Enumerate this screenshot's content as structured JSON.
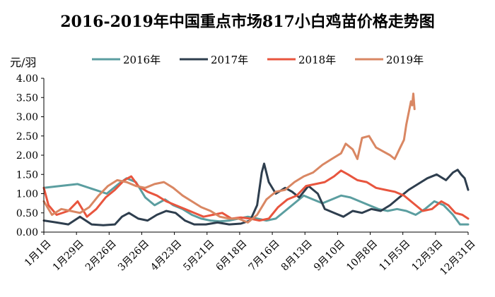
{
  "chart_data": {
    "type": "line",
    "title": "2016-2019年中国重点市场817小白鸡苗价格走势图",
    "ylabel": "元/羽",
    "ylim": [
      0,
      4
    ],
    "yticks": [
      "0.00",
      "0.50",
      "1.00",
      "1.50",
      "2.00",
      "2.50",
      "3.00",
      "3.50",
      "4.00"
    ],
    "xlim": [
      1,
      365
    ],
    "xticks": [
      {
        "label": "1月1日",
        "day": 1
      },
      {
        "label": "1月29日",
        "day": 29
      },
      {
        "label": "2月26日",
        "day": 57
      },
      {
        "label": "3月26日",
        "day": 85
      },
      {
        "label": "4月23日",
        "day": 113
      },
      {
        "label": "5月21日",
        "day": 141
      },
      {
        "label": "6月18日",
        "day": 169
      },
      {
        "label": "7月16日",
        "day": 197
      },
      {
        "label": "8月13日",
        "day": 225
      },
      {
        "label": "9月10日",
        "day": 253
      },
      {
        "label": "10月8日",
        "day": 281
      },
      {
        "label": "11月5日",
        "day": 309
      },
      {
        "label": "12月3日",
        "day": 337
      },
      {
        "label": "12月31日",
        "day": 365
      }
    ],
    "grid": false,
    "legend_position": "top",
    "series": [
      {
        "name": "2016年",
        "color": "#5b9ea0",
        "points": [
          [
            1,
            1.15
          ],
          [
            15,
            1.2
          ],
          [
            30,
            1.25
          ],
          [
            45,
            1.1
          ],
          [
            55,
            1.0
          ],
          [
            65,
            1.25
          ],
          [
            72,
            1.4
          ],
          [
            80,
            1.3
          ],
          [
            88,
            0.9
          ],
          [
            96,
            0.7
          ],
          [
            105,
            0.85
          ],
          [
            112,
            0.7
          ],
          [
            120,
            0.6
          ],
          [
            128,
            0.45
          ],
          [
            136,
            0.35
          ],
          [
            144,
            0.3
          ],
          [
            152,
            0.28
          ],
          [
            160,
            0.3
          ],
          [
            168,
            0.35
          ],
          [
            176,
            0.4
          ],
          [
            184,
            0.35
          ],
          [
            192,
            0.3
          ],
          [
            200,
            0.35
          ],
          [
            208,
            0.55
          ],
          [
            216,
            0.75
          ],
          [
            224,
            0.95
          ],
          [
            232,
            0.85
          ],
          [
            240,
            0.75
          ],
          [
            248,
            0.85
          ],
          [
            256,
            0.95
          ],
          [
            264,
            0.9
          ],
          [
            272,
            0.8
          ],
          [
            280,
            0.7
          ],
          [
            288,
            0.6
          ],
          [
            296,
            0.55
          ],
          [
            304,
            0.6
          ],
          [
            312,
            0.55
          ],
          [
            320,
            0.45
          ],
          [
            328,
            0.6
          ],
          [
            336,
            0.8
          ],
          [
            344,
            0.7
          ],
          [
            352,
            0.45
          ],
          [
            358,
            0.2
          ],
          [
            365,
            0.2
          ]
        ]
      },
      {
        "name": "2017年",
        "color": "#2e3e4e",
        "points": [
          [
            1,
            0.3
          ],
          [
            12,
            0.25
          ],
          [
            22,
            0.2
          ],
          [
            32,
            0.4
          ],
          [
            42,
            0.2
          ],
          [
            52,
            0.18
          ],
          [
            62,
            0.2
          ],
          [
            68,
            0.4
          ],
          [
            74,
            0.5
          ],
          [
            82,
            0.35
          ],
          [
            90,
            0.3
          ],
          [
            98,
            0.45
          ],
          [
            106,
            0.55
          ],
          [
            114,
            0.5
          ],
          [
            122,
            0.3
          ],
          [
            130,
            0.2
          ],
          [
            140,
            0.2
          ],
          [
            150,
            0.25
          ],
          [
            160,
            0.2
          ],
          [
            170,
            0.22
          ],
          [
            178,
            0.3
          ],
          [
            184,
            0.7
          ],
          [
            188,
            1.55
          ],
          [
            190,
            1.78
          ],
          [
            194,
            1.3
          ],
          [
            200,
            1.0
          ],
          [
            208,
            1.15
          ],
          [
            214,
            1.05
          ],
          [
            220,
            0.9
          ],
          [
            228,
            1.2
          ],
          [
            236,
            1.0
          ],
          [
            242,
            0.6
          ],
          [
            250,
            0.5
          ],
          [
            258,
            0.4
          ],
          [
            266,
            0.55
          ],
          [
            274,
            0.5
          ],
          [
            282,
            0.6
          ],
          [
            290,
            0.55
          ],
          [
            298,
            0.7
          ],
          [
            306,
            0.9
          ],
          [
            314,
            1.1
          ],
          [
            322,
            1.25
          ],
          [
            330,
            1.4
          ],
          [
            338,
            1.5
          ],
          [
            346,
            1.35
          ],
          [
            352,
            1.55
          ],
          [
            356,
            1.62
          ],
          [
            359,
            1.5
          ],
          [
            362,
            1.4
          ],
          [
            365,
            1.1
          ]
        ]
      },
      {
        "name": "2018年",
        "color": "#e8553e",
        "points": [
          [
            1,
            1.15
          ],
          [
            5,
            0.7
          ],
          [
            12,
            0.45
          ],
          [
            22,
            0.55
          ],
          [
            30,
            0.8
          ],
          [
            38,
            0.4
          ],
          [
            46,
            0.6
          ],
          [
            54,
            0.9
          ],
          [
            62,
            1.1
          ],
          [
            70,
            1.35
          ],
          [
            76,
            1.45
          ],
          [
            82,
            1.2
          ],
          [
            90,
            1.05
          ],
          [
            98,
            0.95
          ],
          [
            106,
            0.8
          ],
          [
            114,
            0.7
          ],
          [
            122,
            0.6
          ],
          [
            130,
            0.5
          ],
          [
            138,
            0.4
          ],
          [
            146,
            0.45
          ],
          [
            154,
            0.5
          ],
          [
            162,
            0.35
          ],
          [
            170,
            0.38
          ],
          [
            178,
            0.35
          ],
          [
            186,
            0.3
          ],
          [
            194,
            0.35
          ],
          [
            202,
            0.65
          ],
          [
            210,
            0.85
          ],
          [
            218,
            0.95
          ],
          [
            226,
            1.2
          ],
          [
            234,
            1.25
          ],
          [
            242,
            1.3
          ],
          [
            250,
            1.45
          ],
          [
            256,
            1.6
          ],
          [
            262,
            1.5
          ],
          [
            270,
            1.35
          ],
          [
            278,
            1.3
          ],
          [
            286,
            1.15
          ],
          [
            294,
            1.1
          ],
          [
            302,
            1.05
          ],
          [
            310,
            0.95
          ],
          [
            318,
            0.75
          ],
          [
            326,
            0.55
          ],
          [
            334,
            0.6
          ],
          [
            342,
            0.8
          ],
          [
            348,
            0.7
          ],
          [
            354,
            0.5
          ],
          [
            360,
            0.45
          ],
          [
            365,
            0.35
          ]
        ]
      },
      {
        "name": "2019年",
        "color": "#d98763",
        "points": [
          [
            1,
            0.8
          ],
          [
            8,
            0.45
          ],
          [
            16,
            0.6
          ],
          [
            24,
            0.55
          ],
          [
            32,
            0.5
          ],
          [
            40,
            0.65
          ],
          [
            48,
            0.95
          ],
          [
            56,
            1.2
          ],
          [
            64,
            1.35
          ],
          [
            72,
            1.3
          ],
          [
            80,
            1.2
          ],
          [
            88,
            1.15
          ],
          [
            96,
            1.25
          ],
          [
            104,
            1.3
          ],
          [
            112,
            1.15
          ],
          [
            120,
            0.95
          ],
          [
            128,
            0.8
          ],
          [
            136,
            0.65
          ],
          [
            144,
            0.55
          ],
          [
            152,
            0.4
          ],
          [
            160,
            0.35
          ],
          [
            168,
            0.35
          ],
          [
            176,
            0.25
          ],
          [
            184,
            0.45
          ],
          [
            192,
            0.85
          ],
          [
            200,
            1.05
          ],
          [
            208,
            1.1
          ],
          [
            216,
            1.3
          ],
          [
            224,
            1.45
          ],
          [
            232,
            1.55
          ],
          [
            240,
            1.75
          ],
          [
            248,
            1.9
          ],
          [
            256,
            2.05
          ],
          [
            260,
            2.3
          ],
          [
            266,
            2.15
          ],
          [
            270,
            1.9
          ],
          [
            274,
            2.45
          ],
          [
            280,
            2.5
          ],
          [
            286,
            2.2
          ],
          [
            292,
            2.1
          ],
          [
            298,
            2.0
          ],
          [
            302,
            1.9
          ],
          [
            306,
            2.15
          ],
          [
            310,
            2.4
          ],
          [
            312,
            2.8
          ],
          [
            314,
            3.1
          ],
          [
            316,
            3.4
          ],
          [
            317,
            3.3
          ],
          [
            318,
            3.6
          ],
          [
            319,
            3.2
          ]
        ]
      }
    ]
  }
}
